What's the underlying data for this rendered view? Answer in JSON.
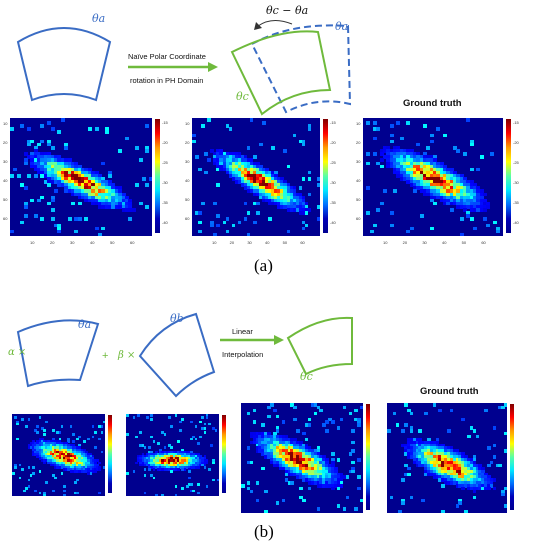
{
  "panel_a": {
    "theta_a": "θa",
    "theta_c": "θc",
    "rotation_label": "θc − θa",
    "arrow_line1": "Naïve Polar Coordinate",
    "arrow_line2": "rotation in PH Domain",
    "ground_truth": "Ground truth",
    "caption": "(a)",
    "yticks": [
      "10",
      "20",
      "30",
      "40",
      "50",
      "60"
    ],
    "xticks": [
      "10",
      "20",
      "30",
      "40",
      "50",
      "60"
    ],
    "cbar_ticks": [
      "-15",
      "-20",
      "-25",
      "-30",
      "-35",
      "-40"
    ]
  },
  "panel_b": {
    "alpha_term": "α ×",
    "plus": "+",
    "beta_term": "β ×",
    "theta_a": "θa",
    "theta_b": "θb",
    "theta_c": "θc",
    "arrow_line1": "Linear",
    "arrow_line2": "Interpolation",
    "ground_truth": "Ground truth",
    "caption": "(b)"
  },
  "colors": {
    "blue_shape": "#3a6cc4",
    "green_shape": "#6fba3c",
    "colormap": "jet"
  }
}
